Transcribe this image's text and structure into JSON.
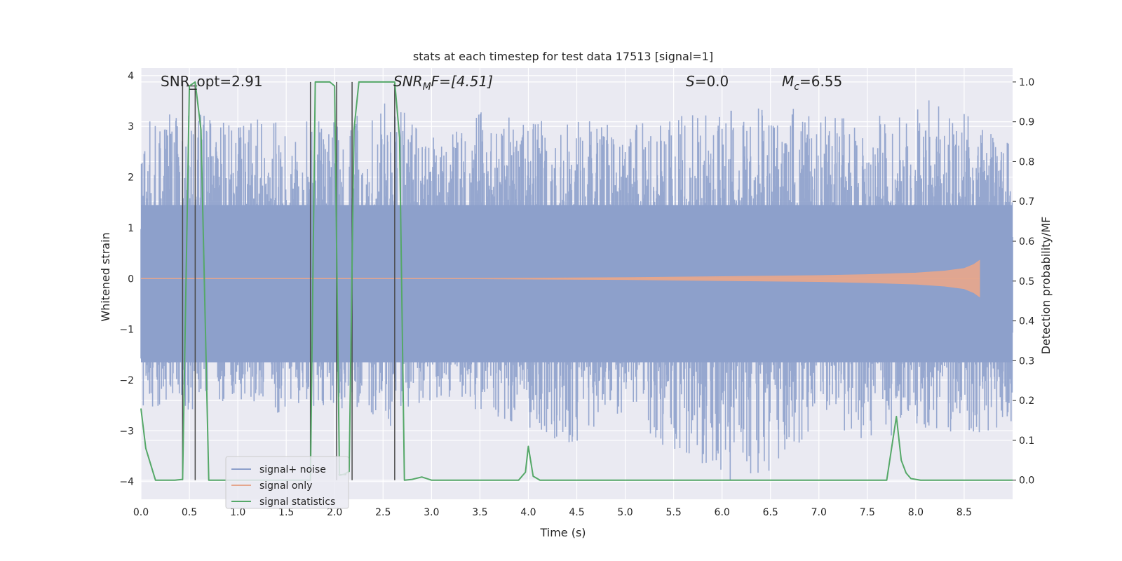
{
  "chart_data": {
    "type": "line",
    "title": "stats at each timestep for test data 17513 [signal=1]",
    "xlabel": "Time (s)",
    "ylabel": "Whitened strain",
    "y2label": "Detection probability/MF",
    "xlim": [
      0,
      9.0
    ],
    "ylim": [
      -4.35,
      4.15
    ],
    "y2lim": [
      -0.048,
      1.035
    ],
    "x_ticks": [
      0.0,
      0.5,
      1.0,
      1.5,
      2.0,
      2.5,
      3.0,
      3.5,
      4.0,
      4.5,
      5.0,
      5.5,
      6.0,
      6.5,
      7.0,
      7.5,
      8.0,
      8.5
    ],
    "x_tick_labels": [
      "0.0",
      "0.5",
      "1.0",
      "1.5",
      "2.0",
      "2.5",
      "3.0",
      "3.5",
      "4.0",
      "4.5",
      "5.0",
      "5.5",
      "6.0",
      "6.5",
      "7.0",
      "7.5",
      "8.0",
      "8.5"
    ],
    "y_ticks": [
      4,
      3,
      2,
      1,
      0,
      -1,
      -2,
      -3,
      -4
    ],
    "y_tick_labels": [
      "4",
      "3",
      "2",
      "1",
      "0",
      "−1",
      "−2",
      "−3",
      "−4"
    ],
    "y2_ticks": [
      1.0,
      0.9,
      0.8,
      0.7,
      0.6,
      0.5,
      0.4,
      0.3,
      0.2,
      0.1,
      0.0
    ],
    "y2_tick_labels": [
      "1.0",
      "0.9",
      "0.8",
      "0.7",
      "0.6",
      "0.5",
      "0.4",
      "0.3",
      "0.2",
      "0.1",
      "0.0"
    ],
    "grid": true,
    "legend_position": "lower-left",
    "annotations": {
      "snr_opt": "SNR_opt=2.91",
      "snr_mf_label": "SNR",
      "snr_mf_sub": "M",
      "snr_mf_rest": "F=[4.51]",
      "s_label": "S",
      "s_rest": "=0.0",
      "mc_label": "M",
      "mc_sub": "c",
      "mc_rest": "=6.55"
    },
    "series": [
      {
        "name": "signal+ noise",
        "color": "#8da0cb",
        "envelope_x": [
          0.0,
          0.5,
          1.0,
          1.5,
          2.0,
          2.5,
          3.0,
          3.5,
          4.0,
          4.5,
          5.0,
          5.5,
          6.0,
          6.5,
          7.0,
          7.5,
          8.0,
          8.5,
          9.0
        ],
        "envelope_upper": [
          3.2,
          3.3,
          3.1,
          3.2,
          3.1,
          3.5,
          3.0,
          3.4,
          3.1,
          3.2,
          3.0,
          3.2,
          3.3,
          3.4,
          3.3,
          3.1,
          3.6,
          3.3,
          2.6
        ],
        "envelope_lower": [
          -2.5,
          -2.6,
          -2.4,
          -2.7,
          -2.5,
          -3.1,
          -2.4,
          -2.6,
          -3.0,
          -3.3,
          -2.6,
          -3.5,
          -4.0,
          -3.9,
          -2.8,
          -3.2,
          -3.0,
          -3.1,
          -2.9
        ]
      },
      {
        "name": "signal only",
        "color": "#e5a68d",
        "x": [
          0.0,
          3.0,
          5.0,
          6.0,
          7.0,
          7.5,
          8.0,
          8.3,
          8.5,
          8.6,
          8.66
        ],
        "amplitude": [
          0.0,
          0.0,
          0.02,
          0.04,
          0.06,
          0.08,
          0.11,
          0.15,
          0.2,
          0.28,
          0.36
        ]
      },
      {
        "name": "signal statistics",
        "color": "#55a868",
        "x": [
          0.0,
          0.05,
          0.15,
          0.25,
          0.35,
          0.43,
          0.5,
          0.56,
          0.62,
          0.7,
          0.85,
          1.0,
          1.5,
          1.7,
          1.75,
          1.8,
          1.9,
          1.95,
          2.0,
          2.05,
          2.1,
          2.15,
          2.2,
          2.25,
          2.35,
          2.45,
          2.55,
          2.62,
          2.67,
          2.72,
          2.8,
          2.9,
          3.0,
          3.9,
          3.97,
          4.0,
          4.05,
          4.12,
          4.5,
          7.7,
          7.8,
          7.85,
          7.9,
          7.95,
          8.05,
          8.15,
          8.5,
          9.0
        ],
        "y": [
          0.18,
          0.08,
          0.0,
          0.0,
          0.0,
          0.002,
          0.99,
          1.0,
          0.88,
          0.0,
          0.0,
          0.0,
          0.0,
          0.0,
          0.0,
          1.0,
          1.0,
          1.0,
          0.99,
          0.012,
          0.015,
          0.022,
          0.88,
          1.0,
          1.0,
          1.0,
          1.0,
          1.0,
          0.86,
          0.0,
          0.002,
          0.008,
          0.0,
          0.0,
          0.02,
          0.085,
          0.01,
          0.0,
          0.0,
          0.0,
          0.16,
          0.05,
          0.018,
          0.004,
          0.0,
          0.0,
          0.0,
          0.0
        ]
      }
    ],
    "vertical_markers": [
      0.43,
      0.56,
      1.75,
      2.02,
      2.18,
      2.62
    ],
    "legend": [
      {
        "label": "signal+ noise",
        "color": "#8da0cb"
      },
      {
        "label": "signal only",
        "color": "#e5a68d"
      },
      {
        "label": "signal statistics",
        "color": "#55a868"
      }
    ]
  }
}
